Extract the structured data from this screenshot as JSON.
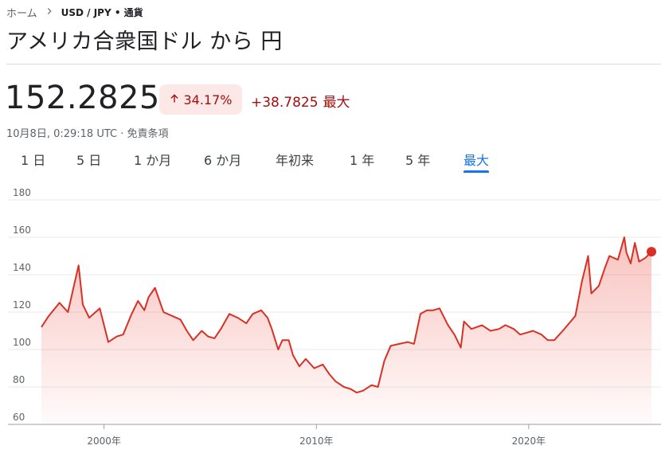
{
  "breadcrumb": {
    "home": "ホーム",
    "pair": "USD / JPY • 通貨"
  },
  "title": "アメリカ合衆国ドル から 円",
  "price": "152.2825",
  "change": {
    "percent": "34.17%",
    "absolute": "+38.7825",
    "period": "最大",
    "direction": "up",
    "color": "#a50e0e",
    "badge_bg": "#fce8e6"
  },
  "timestamp": "10月8日, 0:29:18 UTC · 免責条項",
  "tabs": [
    {
      "label": "1 日",
      "active": false
    },
    {
      "label": "5 日",
      "active": false
    },
    {
      "label": "1 か月",
      "active": false
    },
    {
      "label": "6 か月",
      "active": false
    },
    {
      "label": "年初来",
      "active": false
    },
    {
      "label": "1 年",
      "active": false
    },
    {
      "label": "5 年",
      "active": false
    },
    {
      "label": "最大",
      "active": true
    }
  ],
  "chart_data": {
    "type": "area",
    "title": "",
    "xlabel": "",
    "ylabel": "",
    "line_color": "#d93025",
    "ylim": [
      60,
      180
    ],
    "xlim": [
      1997.05,
      2025.78
    ],
    "y_ticks": [
      180,
      160,
      140,
      120,
      100,
      80,
      60
    ],
    "x_ticks": [
      {
        "value": 2000,
        "label": "2000年"
      },
      {
        "value": 2010,
        "label": "2010年"
      },
      {
        "value": 2020,
        "label": "2020年"
      }
    ],
    "grid": true,
    "x": [
      1997.05,
      1997.4,
      1997.9,
      1998.3,
      1998.6,
      1998.8,
      1999.0,
      1999.3,
      1999.8,
      2000.2,
      2000.6,
      2000.9,
      2001.3,
      2001.6,
      2001.9,
      2002.1,
      2002.4,
      2002.8,
      2003.2,
      2003.6,
      2003.9,
      2004.2,
      2004.6,
      2004.9,
      2005.2,
      2005.5,
      2005.9,
      2006.3,
      2006.7,
      2007.0,
      2007.4,
      2007.7,
      2007.9,
      2008.2,
      2008.4,
      2008.7,
      2008.9,
      2009.2,
      2009.5,
      2009.9,
      2010.3,
      2010.6,
      2010.9,
      2011.3,
      2011.6,
      2011.9,
      2012.2,
      2012.6,
      2012.9,
      2013.2,
      2013.5,
      2013.9,
      2014.3,
      2014.6,
      2014.9,
      2015.2,
      2015.5,
      2015.8,
      2016.2,
      2016.5,
      2016.8,
      2016.95,
      2017.3,
      2017.8,
      2018.2,
      2018.6,
      2018.9,
      2019.3,
      2019.6,
      2019.9,
      2020.2,
      2020.6,
      2020.9,
      2021.2,
      2021.6,
      2021.9,
      2022.2,
      2022.5,
      2022.8,
      2022.95,
      2023.3,
      2023.6,
      2023.8,
      2024.2,
      2024.5,
      2024.6,
      2024.8,
      2025.0,
      2025.2,
      2025.5,
      2025.78
    ],
    "values": [
      112,
      118,
      125,
      120,
      135,
      145,
      124,
      117,
      122,
      104,
      107,
      108,
      119,
      126,
      121,
      128,
      133,
      120,
      118,
      116,
      110,
      105,
      110,
      107,
      106,
      111,
      119,
      117,
      114,
      119,
      121,
      117,
      111,
      100,
      105,
      105,
      97,
      91,
      95,
      90,
      92,
      87,
      83,
      80,
      79,
      77,
      78,
      81,
      80,
      94,
      102,
      103,
      104,
      103,
      119,
      121,
      121,
      122,
      113,
      108,
      101,
      115,
      111,
      113,
      110,
      111,
      113,
      111,
      108,
      109,
      110,
      108,
      105,
      105,
      110,
      114,
      118,
      136,
      150,
      130,
      134,
      144,
      150,
      148,
      160,
      152,
      146,
      157,
      147,
      149,
      152.28
    ]
  }
}
